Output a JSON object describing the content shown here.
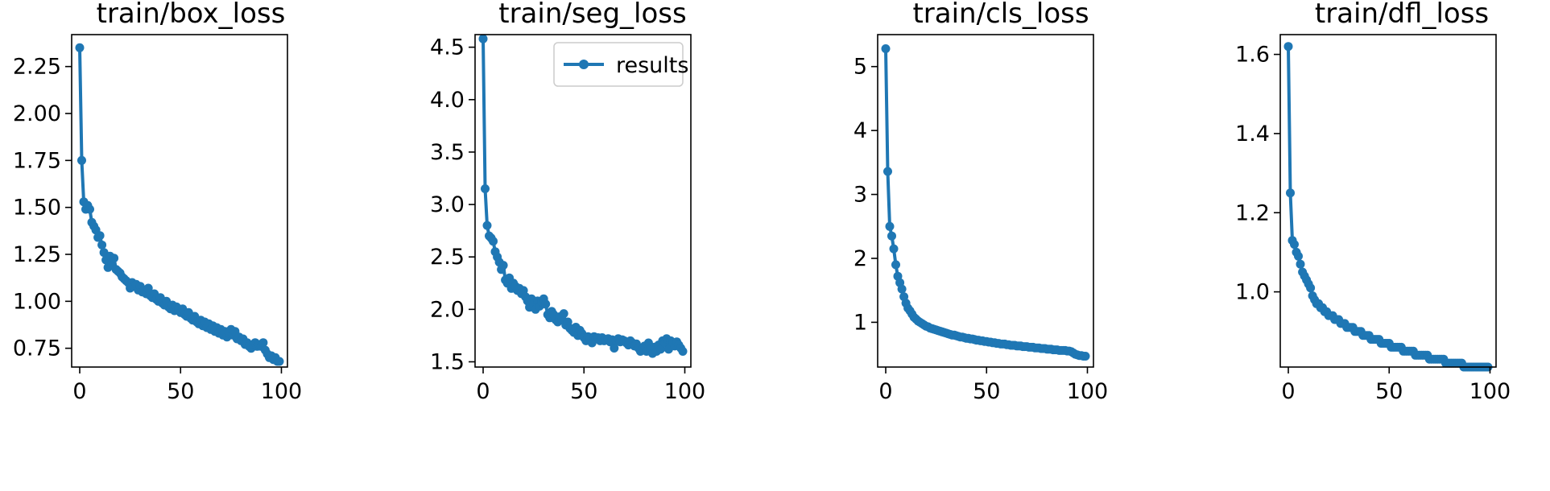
{
  "chart_data": [
    {
      "type": "line",
      "title": "train/box_loss",
      "xlabel": "",
      "ylabel": "",
      "xlim": [
        -4,
        103
      ],
      "ylim": [
        0.65,
        2.42
      ],
      "xticks": [
        0,
        50,
        100
      ],
      "xtick_labels": [
        "0",
        "50",
        "100"
      ],
      "yticks": [
        0.75,
        1.0,
        1.25,
        1.5,
        1.75,
        2.0,
        2.25
      ],
      "ytick_labels": [
        "0.75",
        "1.00",
        "1.25",
        "1.50",
        "1.75",
        "2.00",
        "2.25"
      ],
      "legend": false,
      "color": "#1f77b4",
      "series": [
        {
          "name": "results",
          "values": [
            2.35,
            1.75,
            1.53,
            1.49,
            1.51,
            1.49,
            1.42,
            1.4,
            1.38,
            1.34,
            1.35,
            1.3,
            1.26,
            1.22,
            1.18,
            1.24,
            1.2,
            1.23,
            1.17,
            1.16,
            1.15,
            1.13,
            1.12,
            1.11,
            1.1,
            1.07,
            1.1,
            1.08,
            1.09,
            1.06,
            1.08,
            1.05,
            1.06,
            1.04,
            1.07,
            1.03,
            1.02,
            1.04,
            1.01,
            1.0,
            1.02,
            0.99,
            0.98,
            1.0,
            0.97,
            0.96,
            0.98,
            0.95,
            0.97,
            0.96,
            0.94,
            0.96,
            0.93,
            0.92,
            0.94,
            0.91,
            0.9,
            0.92,
            0.89,
            0.88,
            0.9,
            0.87,
            0.89,
            0.86,
            0.88,
            0.85,
            0.87,
            0.84,
            0.86,
            0.83,
            0.85,
            0.82,
            0.84,
            0.81,
            0.83,
            0.85,
            0.82,
            0.84,
            0.8,
            0.81,
            0.79,
            0.8,
            0.77,
            0.78,
            0.76,
            0.75,
            0.77,
            0.78,
            0.76,
            0.77,
            0.76,
            0.78,
            0.74,
            0.72,
            0.7,
            0.71,
            0.69,
            0.7,
            0.68,
            0.68
          ]
        }
      ]
    },
    {
      "type": "line",
      "title": "train/seg_loss",
      "xlabel": "",
      "ylabel": "",
      "xlim": [
        -4,
        103
      ],
      "ylim": [
        1.45,
        4.62
      ],
      "xticks": [
        0,
        50,
        100
      ],
      "xtick_labels": [
        "0",
        "50",
        "100"
      ],
      "yticks": [
        1.5,
        2.0,
        2.5,
        3.0,
        3.5,
        4.0,
        4.5
      ],
      "ytick_labels": [
        "1.5",
        "2.0",
        "2.5",
        "3.0",
        "3.5",
        "4.0",
        "4.5"
      ],
      "legend": true,
      "legend_position": "top-right",
      "color": "#1f77b4",
      "series": [
        {
          "name": "results",
          "values": [
            4.58,
            3.15,
            2.8,
            2.7,
            2.68,
            2.65,
            2.55,
            2.5,
            2.45,
            2.38,
            2.42,
            2.28,
            2.25,
            2.3,
            2.2,
            2.25,
            2.22,
            2.18,
            2.2,
            2.15,
            2.18,
            2.12,
            2.08,
            2.02,
            2.1,
            2.05,
            2.0,
            2.08,
            2.03,
            2.07,
            2.1,
            2.05,
            1.95,
            1.92,
            1.98,
            1.95,
            1.9,
            1.88,
            1.93,
            1.9,
            1.96,
            1.85,
            1.88,
            1.82,
            1.8,
            1.78,
            1.83,
            1.75,
            1.8,
            1.77,
            1.73,
            1.7,
            1.74,
            1.72,
            1.68,
            1.74,
            1.72,
            1.73,
            1.7,
            1.73,
            1.7,
            1.71,
            1.72,
            1.69,
            1.71,
            1.63,
            1.7,
            1.72,
            1.69,
            1.71,
            1.7,
            1.68,
            1.66,
            1.7,
            1.68,
            1.65,
            1.67,
            1.63,
            1.6,
            1.62,
            1.65,
            1.6,
            1.68,
            1.62,
            1.58,
            1.64,
            1.6,
            1.66,
            1.62,
            1.7,
            1.68,
            1.72,
            1.62,
            1.7,
            1.68,
            1.65,
            1.69,
            1.66,
            1.63,
            1.6
          ]
        }
      ]
    },
    {
      "type": "line",
      "title": "train/cls_loss",
      "xlabel": "",
      "ylabel": "",
      "xlim": [
        -4,
        103
      ],
      "ylim": [
        0.3,
        5.5
      ],
      "xticks": [
        0,
        50,
        100
      ],
      "xtick_labels": [
        "0",
        "50",
        "100"
      ],
      "yticks": [
        1,
        2,
        3,
        4,
        5
      ],
      "ytick_labels": [
        "1",
        "2",
        "3",
        "4",
        "5"
      ],
      "legend": false,
      "color": "#1f77b4",
      "series": [
        {
          "name": "results",
          "values": [
            5.28,
            3.36,
            2.5,
            2.35,
            2.15,
            1.9,
            1.72,
            1.62,
            1.52,
            1.4,
            1.3,
            1.22,
            1.18,
            1.13,
            1.08,
            1.05,
            1.02,
            1.0,
            0.98,
            0.96,
            0.94,
            0.93,
            0.91,
            0.9,
            0.89,
            0.88,
            0.87,
            0.86,
            0.85,
            0.84,
            0.83,
            0.82,
            0.81,
            0.8,
            0.8,
            0.79,
            0.78,
            0.77,
            0.77,
            0.76,
            0.75,
            0.75,
            0.74,
            0.74,
            0.73,
            0.72,
            0.72,
            0.71,
            0.71,
            0.7,
            0.7,
            0.69,
            0.69,
            0.68,
            0.68,
            0.67,
            0.67,
            0.66,
            0.66,
            0.66,
            0.65,
            0.65,
            0.64,
            0.64,
            0.64,
            0.63,
            0.63,
            0.63,
            0.62,
            0.62,
            0.62,
            0.61,
            0.61,
            0.61,
            0.6,
            0.6,
            0.6,
            0.59,
            0.59,
            0.59,
            0.58,
            0.58,
            0.58,
            0.57,
            0.57,
            0.57,
            0.56,
            0.56,
            0.56,
            0.56,
            0.55,
            0.55,
            0.54,
            0.52,
            0.5,
            0.49,
            0.48,
            0.48,
            0.47,
            0.47
          ]
        }
      ]
    },
    {
      "type": "line",
      "title": "train/dfl_loss",
      "xlabel": "",
      "ylabel": "",
      "xlim": [
        -4,
        103
      ],
      "ylim": [
        0.81,
        1.65
      ],
      "xticks": [
        0,
        50,
        100
      ],
      "xtick_labels": [
        "0",
        "50",
        "100"
      ],
      "yticks": [
        1.0,
        1.2,
        1.4,
        1.6
      ],
      "ytick_labels": [
        "1.0",
        "1.2",
        "1.4",
        "1.6"
      ],
      "legend": false,
      "color": "#1f77b4",
      "series": [
        {
          "name": "results",
          "values": [
            1.62,
            1.25,
            1.13,
            1.12,
            1.1,
            1.09,
            1.07,
            1.05,
            1.04,
            1.03,
            1.02,
            1.01,
            0.99,
            0.98,
            0.97,
            0.97,
            0.96,
            0.96,
            0.95,
            0.95,
            0.94,
            0.94,
            0.94,
            0.93,
            0.93,
            0.93,
            0.92,
            0.92,
            0.92,
            0.91,
            0.91,
            0.91,
            0.91,
            0.9,
            0.9,
            0.9,
            0.9,
            0.89,
            0.89,
            0.89,
            0.89,
            0.88,
            0.88,
            0.88,
            0.88,
            0.88,
            0.87,
            0.87,
            0.87,
            0.87,
            0.87,
            0.86,
            0.86,
            0.86,
            0.86,
            0.86,
            0.86,
            0.85,
            0.85,
            0.85,
            0.85,
            0.85,
            0.85,
            0.84,
            0.84,
            0.84,
            0.84,
            0.84,
            0.84,
            0.84,
            0.83,
            0.83,
            0.83,
            0.83,
            0.83,
            0.83,
            0.83,
            0.83,
            0.82,
            0.82,
            0.82,
            0.82,
            0.82,
            0.82,
            0.82,
            0.82,
            0.82,
            0.81,
            0.81,
            0.81,
            0.81,
            0.81,
            0.81,
            0.81,
            0.81,
            0.81,
            0.81,
            0.81,
            0.81,
            0.81
          ]
        }
      ]
    }
  ]
}
